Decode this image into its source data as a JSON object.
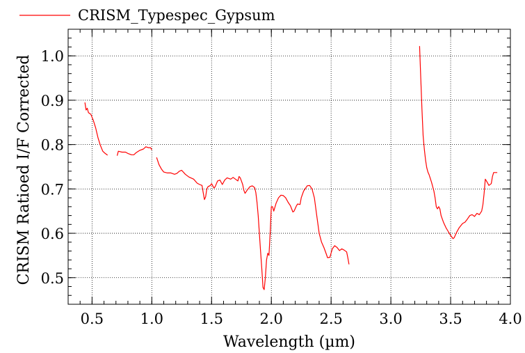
{
  "chart_data": {
    "type": "line",
    "title": "",
    "xlabel": "Wavelength (µm)",
    "ylabel": "CRISM Ratioed I/F Corrected",
    "xlim": [
      0.3,
      4.0
    ],
    "ylim": [
      0.44,
      1.06
    ],
    "xticks": [
      0.5,
      1.0,
      1.5,
      2.0,
      2.5,
      3.0,
      3.5,
      4.0
    ],
    "xtick_labels": [
      "0.5",
      "1.0",
      "1.5",
      "2.0",
      "2.5",
      "3.0",
      "3.5",
      "4.0"
    ],
    "yticks": [
      0.5,
      0.6,
      0.7,
      0.8,
      0.9,
      1.0
    ],
    "ytick_labels": [
      "0.5",
      "0.6",
      "0.7",
      "0.8",
      "0.9",
      "1.0"
    ],
    "grid": true,
    "legend_position": "top-left",
    "series": [
      {
        "name": "CRISM_Typespec_Gypsum",
        "color": "#ff0000",
        "segments": [
          [
            [
              0.44,
              0.895
            ],
            [
              0.45,
              0.878
            ],
            [
              0.46,
              0.882
            ],
            [
              0.47,
              0.872
            ],
            [
              0.49,
              0.868
            ],
            [
              0.51,
              0.855
            ],
            [
              0.53,
              0.838
            ],
            [
              0.55,
              0.815
            ],
            [
              0.57,
              0.798
            ],
            [
              0.59,
              0.785
            ],
            [
              0.61,
              0.78
            ],
            [
              0.63,
              0.776
            ]
          ],
          [
            [
              0.71,
              0.775
            ],
            [
              0.72,
              0.785
            ],
            [
              0.75,
              0.783
            ],
            [
              0.78,
              0.783
            ],
            [
              0.8,
              0.78
            ],
            [
              0.83,
              0.777
            ],
            [
              0.85,
              0.777
            ],
            [
              0.87,
              0.782
            ],
            [
              0.9,
              0.787
            ],
            [
              0.93,
              0.79
            ],
            [
              0.95,
              0.795
            ],
            [
              0.97,
              0.793
            ],
            [
              0.99,
              0.793
            ],
            [
              1.0,
              0.788
            ]
          ],
          [
            [
              1.04,
              0.771
            ],
            [
              1.06,
              0.755
            ],
            [
              1.08,
              0.745
            ],
            [
              1.1,
              0.738
            ],
            [
              1.13,
              0.736
            ],
            [
              1.16,
              0.736
            ],
            [
              1.19,
              0.733
            ],
            [
              1.21,
              0.735
            ],
            [
              1.23,
              0.74
            ],
            [
              1.25,
              0.742
            ],
            [
              1.28,
              0.733
            ],
            [
              1.31,
              0.727
            ],
            [
              1.35,
              0.722
            ],
            [
              1.38,
              0.713
            ],
            [
              1.4,
              0.71
            ],
            [
              1.42,
              0.708
            ],
            [
              1.43,
              0.692
            ],
            [
              1.44,
              0.676
            ],
            [
              1.45,
              0.682
            ],
            [
              1.46,
              0.7
            ],
            [
              1.47,
              0.705
            ],
            [
              1.49,
              0.708
            ],
            [
              1.5,
              0.712
            ],
            [
              1.52,
              0.702
            ],
            [
              1.53,
              0.705
            ],
            [
              1.55,
              0.718
            ],
            [
              1.57,
              0.72
            ],
            [
              1.59,
              0.71
            ],
            [
              1.61,
              0.72
            ],
            [
              1.63,
              0.725
            ],
            [
              1.66,
              0.722
            ],
            [
              1.68,
              0.726
            ],
            [
              1.7,
              0.722
            ],
            [
              1.72,
              0.718
            ],
            [
              1.73,
              0.728
            ],
            [
              1.74,
              0.725
            ],
            [
              1.75,
              0.718
            ],
            [
              1.76,
              0.71
            ],
            [
              1.77,
              0.697
            ],
            [
              1.78,
              0.69
            ],
            [
              1.8,
              0.698
            ],
            [
              1.82,
              0.705
            ],
            [
              1.84,
              0.707
            ],
            [
              1.86,
              0.703
            ],
            [
              1.87,
              0.692
            ],
            [
              1.88,
              0.67
            ],
            [
              1.89,
              0.64
            ],
            [
              1.9,
              0.6
            ],
            [
              1.91,
              0.56
            ],
            [
              1.92,
              0.52
            ],
            [
              1.93,
              0.478
            ],
            [
              1.94,
              0.473
            ],
            [
              1.95,
              0.5
            ],
            [
              1.96,
              0.54
            ],
            [
              1.97,
              0.555
            ],
            [
              1.98,
              0.55
            ],
            [
              1.99,
              0.6
            ],
            [
              2.0,
              0.66
            ],
            [
              2.01,
              0.66
            ],
            [
              2.02,
              0.65
            ],
            [
              2.04,
              0.668
            ],
            [
              2.06,
              0.68
            ],
            [
              2.08,
              0.686
            ],
            [
              2.1,
              0.685
            ],
            [
              2.12,
              0.68
            ],
            [
              2.14,
              0.67
            ],
            [
              2.16,
              0.662
            ],
            [
              2.18,
              0.648
            ],
            [
              2.19,
              0.65
            ],
            [
              2.21,
              0.662
            ],
            [
              2.22,
              0.666
            ],
            [
              2.24,
              0.665
            ],
            [
              2.25,
              0.68
            ],
            [
              2.27,
              0.695
            ],
            [
              2.29,
              0.703
            ],
            [
              2.3,
              0.707
            ],
            [
              2.32,
              0.708
            ],
            [
              2.34,
              0.7
            ],
            [
              2.36,
              0.68
            ],
            [
              2.38,
              0.64
            ],
            [
              2.4,
              0.6
            ],
            [
              2.42,
              0.58
            ],
            [
              2.44,
              0.568
            ],
            [
              2.46,
              0.553
            ],
            [
              2.47,
              0.545
            ],
            [
              2.49,
              0.546
            ],
            [
              2.51,
              0.565
            ],
            [
              2.53,
              0.572
            ],
            [
              2.55,
              0.568
            ],
            [
              2.57,
              0.561
            ],
            [
              2.59,
              0.565
            ],
            [
              2.61,
              0.562
            ],
            [
              2.63,
              0.558
            ],
            [
              2.64,
              0.545
            ],
            [
              2.65,
              0.53
            ]
          ],
          [
            [
              3.24,
              1.022
            ],
            [
              3.25,
              0.95
            ],
            [
              3.26,
              0.88
            ],
            [
              3.27,
              0.82
            ],
            [
              3.28,
              0.79
            ],
            [
              3.29,
              0.765
            ],
            [
              3.3,
              0.748
            ],
            [
              3.31,
              0.738
            ],
            [
              3.32,
              0.732
            ],
            [
              3.34,
              0.715
            ],
            [
              3.36,
              0.695
            ],
            [
              3.37,
              0.68
            ],
            [
              3.38,
              0.66
            ],
            [
              3.39,
              0.655
            ],
            [
              3.4,
              0.66
            ],
            [
              3.41,
              0.655
            ],
            [
              3.42,
              0.64
            ],
            [
              3.44,
              0.625
            ],
            [
              3.46,
              0.613
            ],
            [
              3.48,
              0.604
            ],
            [
              3.5,
              0.595
            ],
            [
              3.52,
              0.588
            ],
            [
              3.53,
              0.59
            ],
            [
              3.55,
              0.602
            ],
            [
              3.57,
              0.612
            ],
            [
              3.6,
              0.622
            ],
            [
              3.62,
              0.625
            ],
            [
              3.64,
              0.632
            ],
            [
              3.66,
              0.64
            ],
            [
              3.68,
              0.642
            ],
            [
              3.7,
              0.638
            ],
            [
              3.72,
              0.645
            ],
            [
              3.74,
              0.642
            ],
            [
              3.76,
              0.65
            ],
            [
              3.77,
              0.665
            ],
            [
              3.78,
              0.69
            ],
            [
              3.79,
              0.722
            ],
            [
              3.8,
              0.718
            ],
            [
              3.82,
              0.708
            ],
            [
              3.84,
              0.712
            ],
            [
              3.85,
              0.728
            ],
            [
              3.86,
              0.737
            ],
            [
              3.88,
              0.737
            ],
            [
              3.89,
              0.737
            ]
          ]
        ]
      }
    ]
  }
}
